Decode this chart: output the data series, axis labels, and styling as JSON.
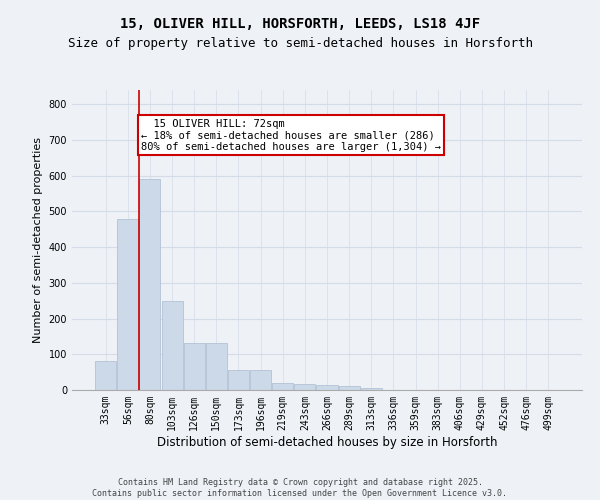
{
  "title1": "15, OLIVER HILL, HORSFORTH, LEEDS, LS18 4JF",
  "title2": "Size of property relative to semi-detached houses in Horsforth",
  "xlabel": "Distribution of semi-detached houses by size in Horsforth",
  "ylabel": "Number of semi-detached properties",
  "bar_color": "#ccd9e8",
  "bar_edge_color": "#aabbd0",
  "grid_color": "#d4dce8",
  "categories": [
    "33sqm",
    "56sqm",
    "80sqm",
    "103sqm",
    "126sqm",
    "150sqm",
    "173sqm",
    "196sqm",
    "219sqm",
    "243sqm",
    "266sqm",
    "289sqm",
    "313sqm",
    "336sqm",
    "359sqm",
    "383sqm",
    "406sqm",
    "429sqm",
    "452sqm",
    "476sqm",
    "499sqm"
  ],
  "values": [
    80,
    480,
    590,
    250,
    133,
    133,
    55,
    55,
    20,
    17,
    14,
    10,
    5,
    0,
    0,
    0,
    0,
    0,
    0,
    0,
    0
  ],
  "ylim": [
    0,
    840
  ],
  "yticks": [
    0,
    100,
    200,
    300,
    400,
    500,
    600,
    700,
    800
  ],
  "redline_x": 1.5,
  "annotation_text": "  15 OLIVER HILL: 72sqm\n← 18% of semi-detached houses are smaller (286)\n80% of semi-detached houses are larger (1,304) →",
  "annotation_box_color": "#ffffff",
  "annotation_box_edge": "#cc0000",
  "redline_color": "#cc0000",
  "footer1": "Contains HM Land Registry data © Crown copyright and database right 2025.",
  "footer2": "Contains public sector information licensed under the Open Government Licence v3.0.",
  "background_color": "#eef2f7",
  "plot_bg_color": "#eef2f7",
  "title_fontsize": 10,
  "subtitle_fontsize": 9,
  "tick_fontsize": 7,
  "ylabel_fontsize": 8,
  "xlabel_fontsize": 8.5,
  "footer_fontsize": 6,
  "annotation_fontsize": 7.5
}
